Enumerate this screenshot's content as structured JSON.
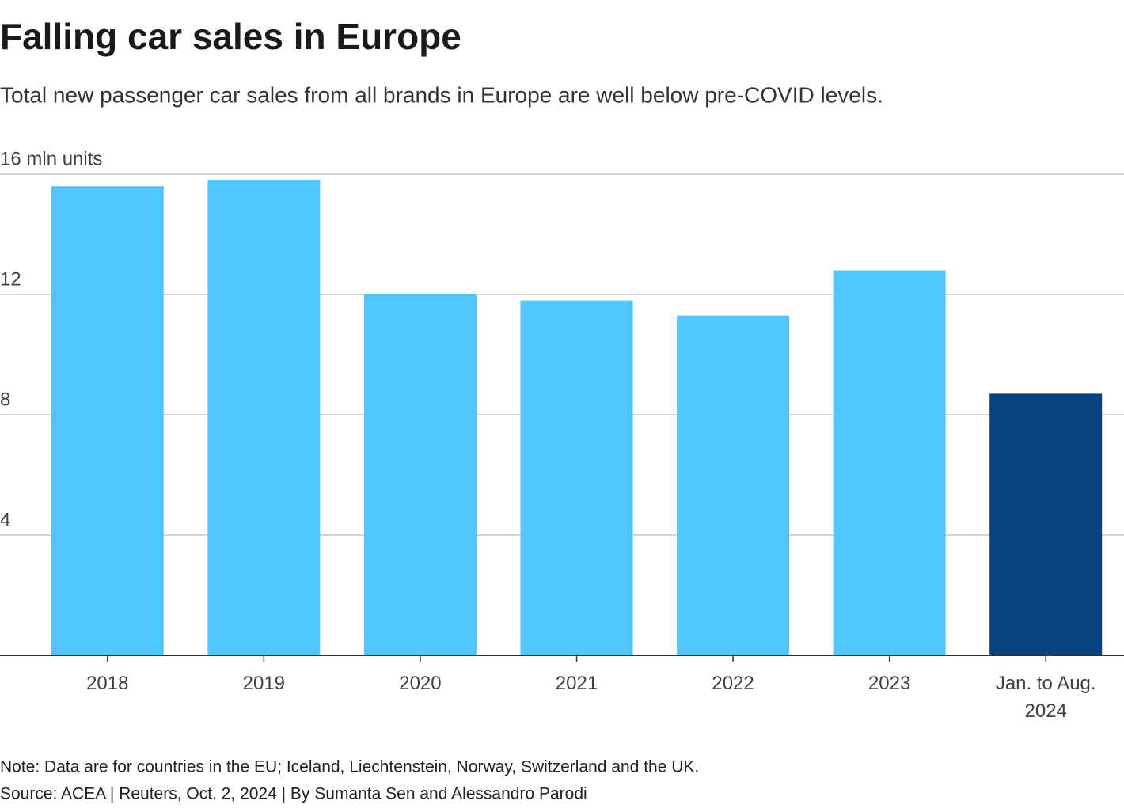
{
  "chart_data": {
    "type": "bar",
    "title": "Falling car sales in Europe",
    "subtitle": "Total new passenger car sales from all brands in Europe are well below pre-COVID levels.",
    "categories": [
      "2018",
      "2019",
      "2020",
      "2021",
      "2022",
      "2023",
      "Jan. to Aug. 2024"
    ],
    "values": [
      15.6,
      15.8,
      12.0,
      11.8,
      11.3,
      12.8,
      8.7
    ],
    "colors": [
      "#4fc6fc",
      "#4fc6fc",
      "#4fc6fc",
      "#4fc6fc",
      "#4fc6fc",
      "#4fc6fc",
      "#0a417f"
    ],
    "ylim": [
      0,
      16
    ],
    "yticks": [
      4,
      8,
      12,
      {
        "value": 16,
        "label": "16 mln units"
      }
    ],
    "grid": true,
    "note": "Note: Data are for countries in the EU; Iceland, Liechtenstein, Norway, Switzerland and the UK.",
    "source": "Source: ACEA | Reuters, Oct. 2, 2024 | By Sumanta Sen and Alessandro Parodi"
  }
}
